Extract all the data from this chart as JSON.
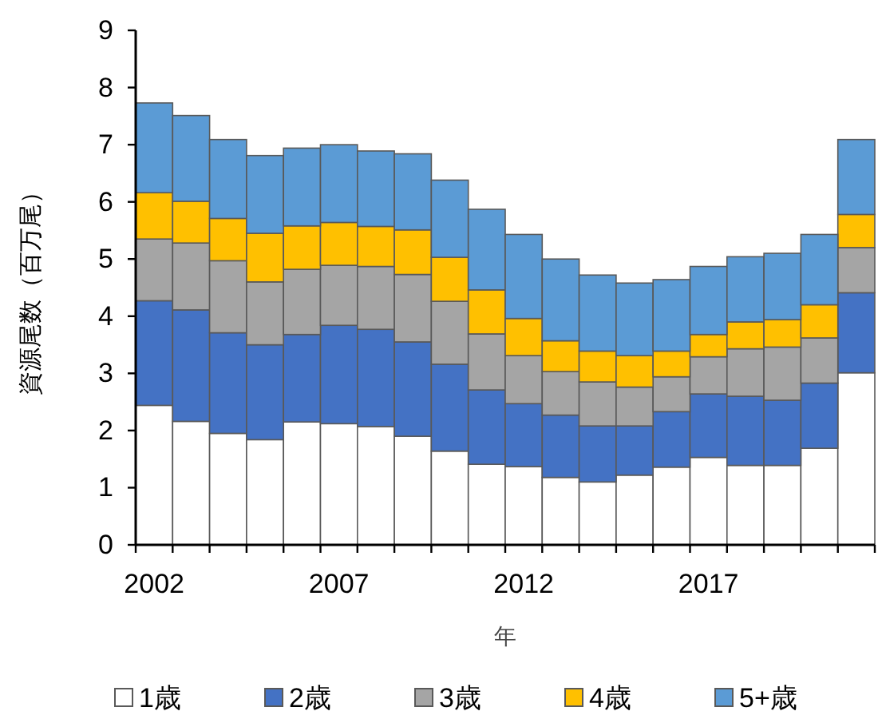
{
  "chart_data": {
    "type": "bar",
    "stacked": true,
    "xlabel": "年",
    "ylabel": "資源尾数（百万尾）",
    "categories": [
      "2002",
      null,
      null,
      null,
      null,
      "2007",
      null,
      null,
      null,
      null,
      "2012",
      null,
      null,
      null,
      null,
      "2017",
      null,
      null,
      null,
      null
    ],
    "ylim": [
      0,
      9
    ],
    "yticks": [
      0,
      1,
      2,
      3,
      4,
      5,
      6,
      7,
      8,
      9
    ],
    "grid": false,
    "legend": "bottom",
    "series": [
      {
        "name": "1歳",
        "color": "#ffffff",
        "values": [
          2.44,
          2.16,
          1.95,
          1.84,
          2.15,
          2.12,
          2.07,
          1.9,
          1.64,
          1.41,
          1.37,
          1.18,
          1.1,
          1.22,
          1.36,
          1.53,
          1.39,
          1.39,
          1.69,
          3.01
        ]
      },
      {
        "name": "2歳",
        "color": "#4472c4",
        "values": [
          1.83,
          1.95,
          1.76,
          1.66,
          1.53,
          1.72,
          1.7,
          1.65,
          1.52,
          1.3,
          1.1,
          1.09,
          0.98,
          0.86,
          0.97,
          1.11,
          1.21,
          1.14,
          1.14,
          1.4
        ]
      },
      {
        "name": "3歳",
        "color": "#a5a5a5",
        "values": [
          1.08,
          1.17,
          1.26,
          1.1,
          1.14,
          1.05,
          1.1,
          1.18,
          1.1,
          0.98,
          0.84,
          0.76,
          0.77,
          0.68,
          0.61,
          0.65,
          0.83,
          0.93,
          0.79,
          0.79
        ]
      },
      {
        "name": "4歳",
        "color": "#ffc000",
        "values": [
          0.81,
          0.73,
          0.74,
          0.85,
          0.76,
          0.75,
          0.7,
          0.78,
          0.77,
          0.77,
          0.65,
          0.54,
          0.54,
          0.55,
          0.45,
          0.39,
          0.47,
          0.48,
          0.58,
          0.58
        ]
      },
      {
        "name": "5+歳",
        "color": "#5b9bd5",
        "values": [
          1.57,
          1.5,
          1.38,
          1.36,
          1.36,
          1.36,
          1.32,
          1.33,
          1.35,
          1.41,
          1.47,
          1.43,
          1.33,
          1.27,
          1.25,
          1.19,
          1.14,
          1.16,
          1.23,
          1.31
        ]
      }
    ]
  }
}
